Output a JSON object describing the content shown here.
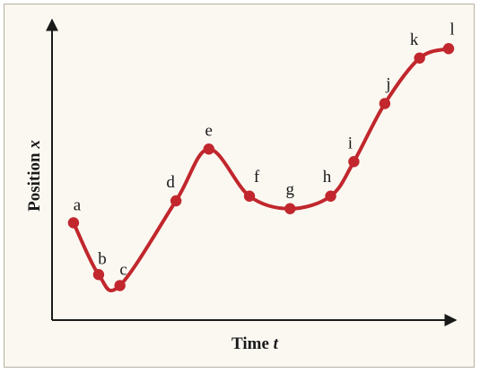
{
  "chart_data": {
    "type": "line",
    "title": "",
    "xlabel": "Time",
    "xlabel_var": "t",
    "ylabel": "Position",
    "ylabel_var": "x",
    "x_ticks": [],
    "y_ticks": [],
    "grid": false,
    "legend": "none",
    "line_color": "#c1272d",
    "point_color": "#c1272d",
    "points": [
      {
        "label": "a",
        "x": 0.03,
        "y": 0.31
      },
      {
        "label": "b",
        "x": 0.095,
        "y": 0.145
      },
      {
        "label": "c",
        "x": 0.15,
        "y": 0.11
      },
      {
        "label": "d",
        "x": 0.295,
        "y": 0.38
      },
      {
        "label": "e",
        "x": 0.38,
        "y": 0.545
      },
      {
        "label": "f",
        "x": 0.485,
        "y": 0.395
      },
      {
        "label": "g",
        "x": 0.59,
        "y": 0.355
      },
      {
        "label": "h",
        "x": 0.695,
        "y": 0.395
      },
      {
        "label": "i",
        "x": 0.755,
        "y": 0.505
      },
      {
        "label": "j",
        "x": 0.835,
        "y": 0.69
      },
      {
        "label": "k",
        "x": 0.925,
        "y": 0.835
      },
      {
        "label": "l",
        "x": 1.0,
        "y": 0.865
      }
    ]
  }
}
